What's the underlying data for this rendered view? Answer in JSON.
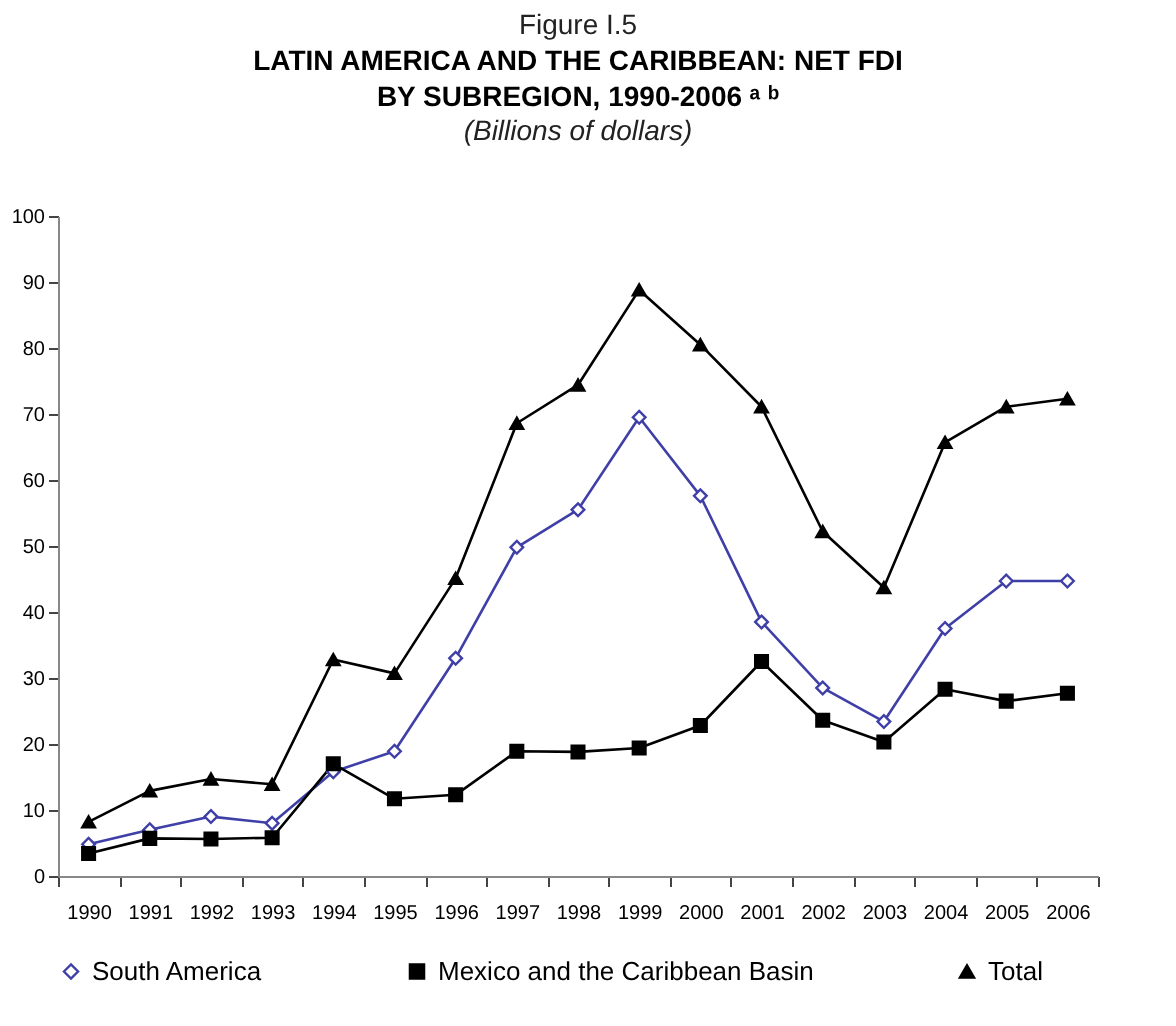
{
  "chart_data": {
    "type": "line",
    "title": "LATIN AMERICA AND THE CARIBBEAN: NET FDI BY SUBREGION, 1990-2006 ᵃ ᵇ",
    "subtitle": "(Billions of dollars)",
    "annotations": [
      "Figure I.5"
    ],
    "categories": [
      "1990",
      "1991",
      "1992",
      "1993",
      "1994",
      "1995",
      "1996",
      "1997",
      "1998",
      "1999",
      "2000",
      "2001",
      "2002",
      "2003",
      "2004",
      "2005",
      "2006"
    ],
    "ylim": [
      0,
      100
    ],
    "yticks": [
      0,
      10,
      20,
      30,
      40,
      50,
      60,
      70,
      80,
      90,
      100
    ],
    "grid": false,
    "legend": "bottom",
    "series": [
      {
        "name": "South America",
        "color": "#3f3fa8",
        "marker": "diamond",
        "values": [
          4.8,
          7.0,
          9.0,
          8.0,
          15.8,
          18.9,
          33.0,
          49.8,
          55.5,
          69.5,
          57.6,
          38.5,
          28.5,
          23.4,
          37.5,
          44.7,
          44.7
        ]
      },
      {
        "name": "Mexico and the Caribbean Basin",
        "color": "#000000",
        "marker": "square",
        "values": [
          3.4,
          5.7,
          5.6,
          5.8,
          17.0,
          11.7,
          12.3,
          18.9,
          18.8,
          19.4,
          22.8,
          32.5,
          23.6,
          20.3,
          28.3,
          26.5,
          27.7
        ]
      },
      {
        "name": "Total",
        "color": "#000000",
        "marker": "triangle",
        "values": [
          8.2,
          12.9,
          14.7,
          13.9,
          32.8,
          30.7,
          45.1,
          68.6,
          74.4,
          88.8,
          80.5,
          71.1,
          52.2,
          43.7,
          65.7,
          71.1,
          72.3
        ]
      }
    ]
  }
}
